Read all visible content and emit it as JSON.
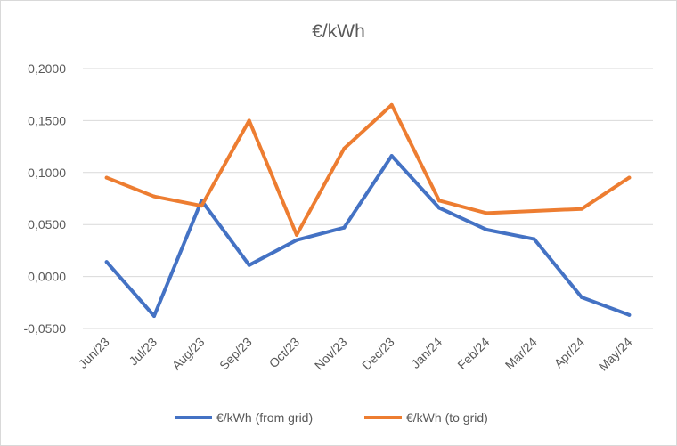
{
  "chart_data": {
    "type": "line",
    "title": "€/kWh",
    "categories": [
      "Jun/23",
      "Jul/23",
      "Aug/23",
      "Sep/23",
      "Oct/23",
      "Nov/23",
      "Dec/23",
      "Jan/24",
      "Feb/24",
      "Mar/24",
      "Apr/24",
      "May/24"
    ],
    "series": [
      {
        "name": "€/kWh (from grid)",
        "color": "#4472c4",
        "values": [
          0.014,
          -0.038,
          0.073,
          0.011,
          0.035,
          0.047,
          0.116,
          0.066,
          0.045,
          0.036,
          -0.02,
          -0.037
        ]
      },
      {
        "name": "€/kWh (to grid)",
        "color": "#ed7d31",
        "values": [
          0.095,
          0.077,
          0.068,
          0.15,
          0.04,
          0.123,
          0.165,
          0.073,
          0.061,
          0.063,
          0.065,
          0.095
        ]
      }
    ],
    "yticks": [
      "0,2000",
      "0,1500",
      "0,1000",
      "0,0500",
      "0,0000",
      "-0,0500"
    ],
    "ylim": [
      -0.05,
      0.2
    ],
    "grid": true,
    "legend": "bottom"
  }
}
